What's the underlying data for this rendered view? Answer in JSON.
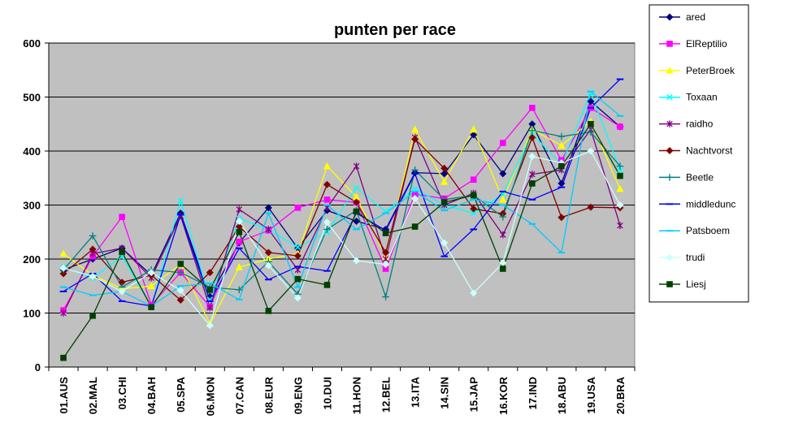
{
  "chart_data": {
    "type": "line",
    "title": "punten per race",
    "xlabel": "",
    "ylabel": "",
    "ylim": [
      0,
      600
    ],
    "yticks": [
      0,
      100,
      200,
      300,
      400,
      500,
      600
    ],
    "grid": true,
    "legend_position": "right",
    "plot_background": "#c0c0c0",
    "categories": [
      "01.AUS",
      "02.MAL",
      "03.CHI",
      "04.BAH",
      "05.SPA",
      "06.MON",
      "07.CAN",
      "08.EUR",
      "09.ENG",
      "10.DUI",
      "11.HON",
      "12.BEL",
      "13.ITA",
      "14.SIN",
      "15.JAP",
      "16.KOR",
      "17.IND",
      "18.ABU",
      "19.USA",
      "20.BRA"
    ],
    "series": [
      {
        "name": "ared",
        "color": "#000080",
        "marker": "diamond",
        "values": [
          180,
          200,
          220,
          170,
          285,
          130,
          230,
          295,
          220,
          290,
          270,
          255,
          360,
          358,
          430,
          358,
          450,
          340,
          492,
          445
        ]
      },
      {
        "name": "ElReptilio",
        "color": "#ff00ff",
        "marker": "square",
        "values": [
          105,
          205,
          278,
          115,
          175,
          112,
          232,
          253,
          295,
          310,
          305,
          182,
          320,
          312,
          347,
          415,
          480,
          383,
          480,
          445
        ]
      },
      {
        "name": "PeterBroek",
        "color": "#ffff00",
        "marker": "triangle",
        "values": [
          210,
          170,
          145,
          150,
          190,
          80,
          185,
          200,
          210,
          372,
          315,
          205,
          440,
          343,
          440,
          310,
          440,
          410,
          455,
          330
        ]
      },
      {
        "name": "Toxaan",
        "color": "#00ffff",
        "marker": "x",
        "values": [
          185,
          165,
          205,
          112,
          308,
          125,
          275,
          255,
          222,
          250,
          332,
          288,
          330,
          300,
          285,
          320,
          432,
          375,
          508,
          365
        ]
      },
      {
        "name": "raidho",
        "color": "#800080",
        "marker": "star",
        "values": [
          100,
          210,
          220,
          165,
          280,
          110,
          292,
          255,
          180,
          295,
          372,
          200,
          425,
          300,
          322,
          245,
          357,
          365,
          440,
          262
        ]
      },
      {
        "name": "Nachtvorst",
        "color": "#800000",
        "marker": "diamond",
        "values": [
          173,
          218,
          157,
          170,
          124,
          175,
          260,
          212,
          206,
          338,
          305,
          212,
          422,
          368,
          293,
          284,
          425,
          277,
          296,
          295
        ]
      },
      {
        "name": "Beetle",
        "color": "#008080",
        "marker": "plus",
        "values": [
          180,
          243,
          148,
          180,
          175,
          148,
          143,
          195,
          135,
          255,
          290,
          130,
          365,
          310,
          318,
          278,
          438,
          427,
          435,
          372
        ]
      },
      {
        "name": "middledunc",
        "color": "#0000ff",
        "marker": "dash",
        "values": [
          140,
          173,
          122,
          113,
          282,
          122,
          220,
          162,
          186,
          178,
          285,
          253,
          358,
          205,
          255,
          325,
          310,
          333,
          480,
          533
        ]
      },
      {
        "name": "Patsboem",
        "color": "#00ccff",
        "marker": "dash",
        "values": [
          148,
          133,
          140,
          113,
          150,
          155,
          125,
          285,
          148,
          300,
          255,
          285,
          325,
          290,
          310,
          300,
          265,
          212,
          510,
          465
        ]
      },
      {
        "name": "trudi",
        "color": "#ccffff",
        "marker": "diamond",
        "values": [
          183,
          168,
          140,
          175,
          142,
          77,
          270,
          188,
          128,
          268,
          197,
          190,
          312,
          230,
          137,
          193,
          390,
          378,
          400,
          300
        ]
      },
      {
        "name": "Liesj",
        "color": "#004000",
        "marker": "square",
        "values": [
          17,
          95,
          213,
          111,
          191,
          143,
          250,
          104,
          163,
          152,
          288,
          248,
          260,
          305,
          318,
          182,
          340,
          372,
          450,
          354
        ]
      }
    ]
  }
}
